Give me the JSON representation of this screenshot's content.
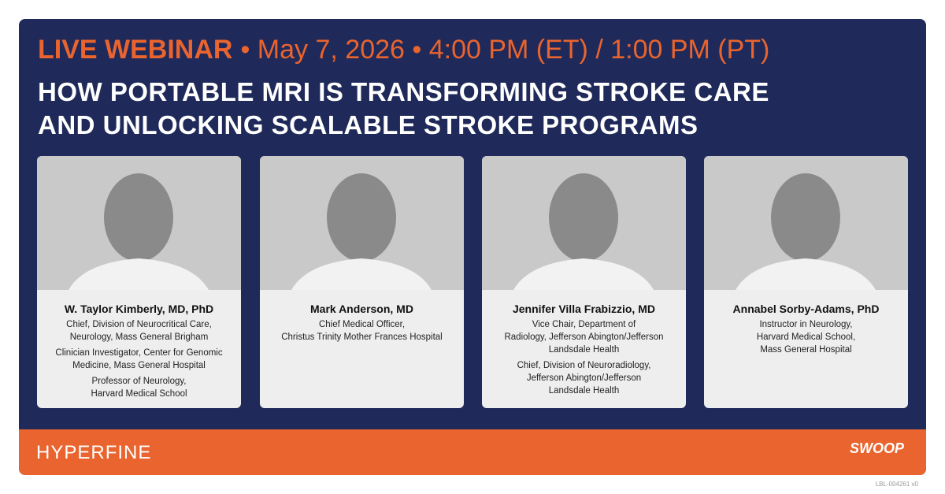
{
  "header": {
    "label": "LIVE WEBINAR",
    "date_time": "• May 7, 2026 • 4:00 PM (ET) / 1:00 PM (PT)"
  },
  "title": [
    "HOW PORTABLE MRI IS TRANSFORMING STROKE CARE",
    "AND UNLOCKING SCALABLE STROKE PROGRAMS"
  ],
  "speakers": [
    {
      "name": "W. Taylor Kimberly, MD, PhD",
      "roles": [
        [
          "Chief, Division of Neurocritical Care,",
          "Neurology, Mass General Brigham"
        ],
        [
          "Clinician Investigator, Center for Genomic",
          "Medicine, Mass General Hospital"
        ],
        [
          "Professor of Neurology,",
          "Harvard Medical School"
        ]
      ]
    },
    {
      "name": "Mark Anderson, MD",
      "roles": [
        [
          "Chief Medical Officer,",
          "Christus Trinity Mother Frances Hospital"
        ]
      ]
    },
    {
      "name": "Jennifer Villa Frabizzio, MD",
      "roles": [
        [
          "Vice Chair, Department of",
          "Radiology, Jefferson Abington/Jefferson",
          "Landsdale Health"
        ],
        [
          "Chief, Division of Neuroradiology,",
          "Jefferson Abington/Jefferson",
          "Landsdale Health"
        ]
      ]
    },
    {
      "name": "Annabel Sorby-Adams, PhD",
      "roles": [
        [
          "Instructor in Neurology,",
          "Harvard Medical School,",
          "Mass General Hospital"
        ]
      ]
    }
  ],
  "footer": {
    "left_logo": "HYPERFINE",
    "right_logo": "SWOOP",
    "code": "LBL-004261 v0"
  }
}
